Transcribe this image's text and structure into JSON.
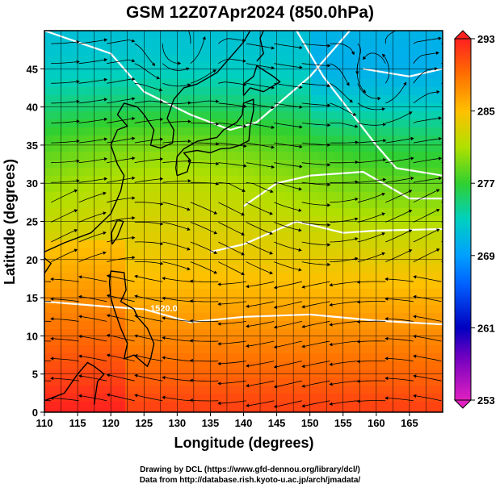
{
  "chart_data": {
    "type": "heatmap",
    "title": "GSM 12Z07Apr2024 (850.0hPa)",
    "xlabel": "Longitude (degrees)",
    "ylabel": "Latitude  (degrees)",
    "xlim": [
      110,
      170
    ],
    "ylim": [
      0,
      50
    ],
    "x_ticks": [
      110,
      115,
      120,
      125,
      130,
      135,
      140,
      145,
      150,
      155,
      160,
      165
    ],
    "y_ticks": [
      0,
      5,
      10,
      15,
      20,
      25,
      30,
      35,
      40,
      45
    ],
    "grid": true,
    "colorbar": {
      "min": 253,
      "max": 293,
      "ticks": [
        253,
        261,
        269,
        277,
        285,
        293
      ],
      "colors": [
        "#e020c0",
        "#0000c0",
        "#0090ff",
        "#00d0c0",
        "#30d030",
        "#f0d000",
        "#ff7000",
        "#ff2020"
      ]
    },
    "contour_labels": [
      "1520.0"
    ]
  },
  "footer": {
    "line1": "Drawing by DCL (https://www.gfd-dennou.org/library/dcl/)",
    "line2": "Data from http://database.rish.kyoto-u.ac.jp/arch/jmadata/"
  }
}
